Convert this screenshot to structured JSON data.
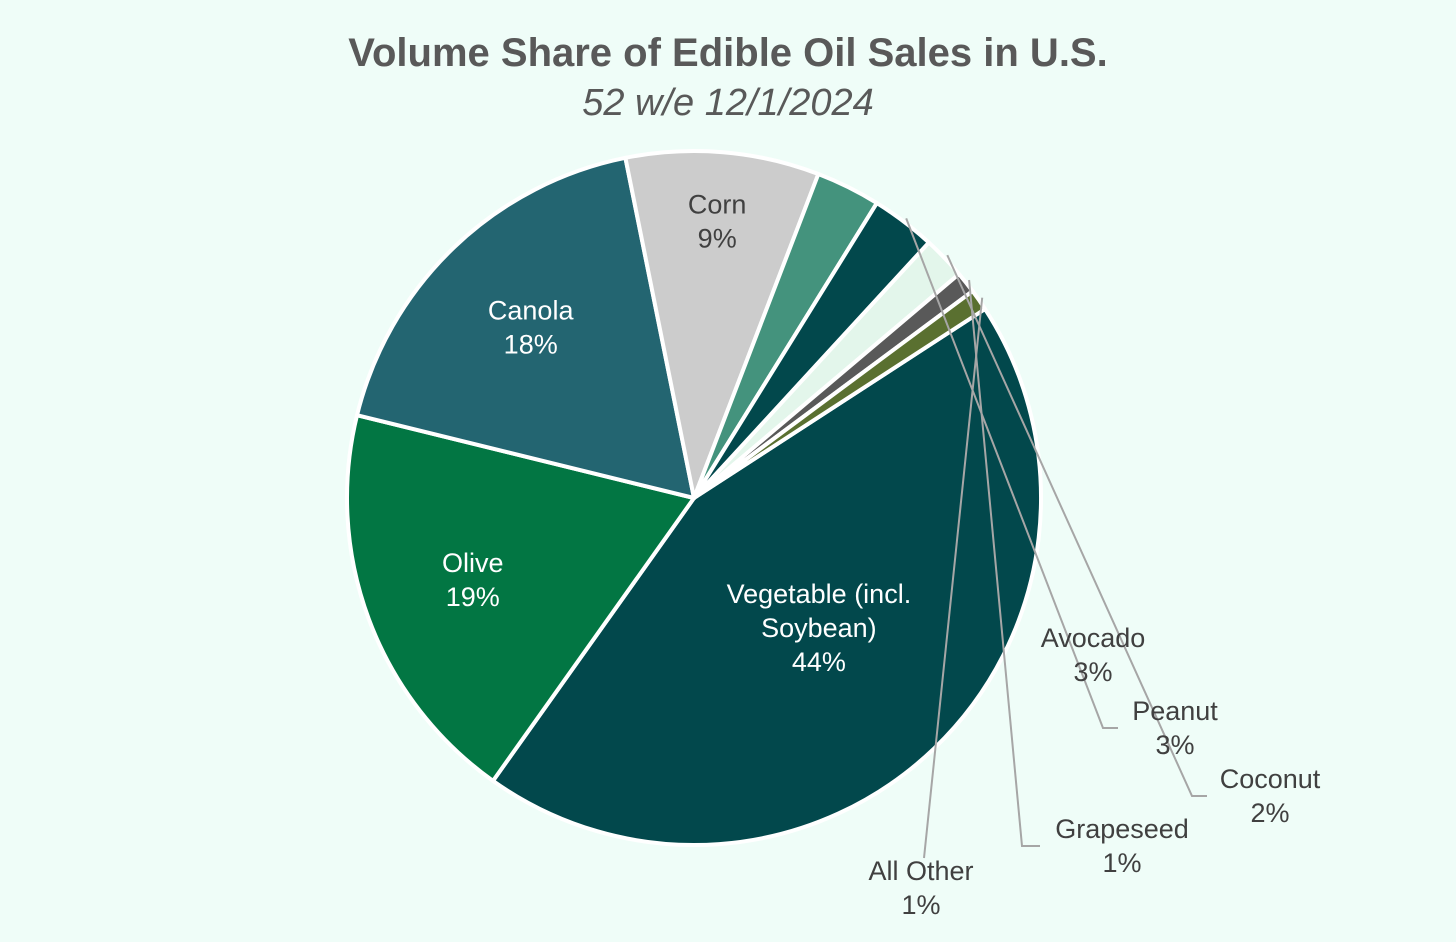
{
  "chart_data": {
    "type": "pie",
    "title": "Volume Share of Edible Oil Sales in U.S.",
    "subtitle": "52 w/e 12/1/2024",
    "slices": [
      {
        "key": "vegetable",
        "label_lines": [
          "Vegetable (incl.",
          "Soybean)"
        ],
        "value": 44,
        "value_label": "44%",
        "color": "#02484c",
        "label_color": "#ffffff"
      },
      {
        "key": "olive",
        "label_lines": [
          "Olive"
        ],
        "value": 19,
        "value_label": "19%",
        "color": "#027643",
        "label_color": "#ffffff"
      },
      {
        "key": "canola",
        "label_lines": [
          "Canola"
        ],
        "value": 18,
        "value_label": "18%",
        "color": "#236571",
        "label_color": "#ffffff"
      },
      {
        "key": "corn",
        "label_lines": [
          "Corn"
        ],
        "value": 9,
        "value_label": "9%",
        "color": "#cccccc",
        "label_color": "#404040"
      },
      {
        "key": "avocado",
        "label_lines": [
          "Avocado"
        ],
        "value": 3,
        "value_label": "3%",
        "color": "#44937d",
        "label_color": "#404040"
      },
      {
        "key": "peanut",
        "label_lines": [
          "Peanut"
        ],
        "value": 3,
        "value_label": "3%",
        "color": "#02484c",
        "label_color": "#404040"
      },
      {
        "key": "coconut",
        "label_lines": [
          "Coconut"
        ],
        "value": 2,
        "value_label": "2%",
        "color": "#e3f6eb",
        "label_color": "#404040"
      },
      {
        "key": "grapeseed",
        "label_lines": [
          "Grapeseed"
        ],
        "value": 1,
        "value_label": "1%",
        "color": "#595959",
        "label_color": "#404040"
      },
      {
        "key": "all-other",
        "label_lines": [
          "All Other"
        ],
        "value": 1,
        "value_label": "1%",
        "color": "#5a7030",
        "label_color": "#404040"
      }
    ],
    "legend": "none"
  }
}
